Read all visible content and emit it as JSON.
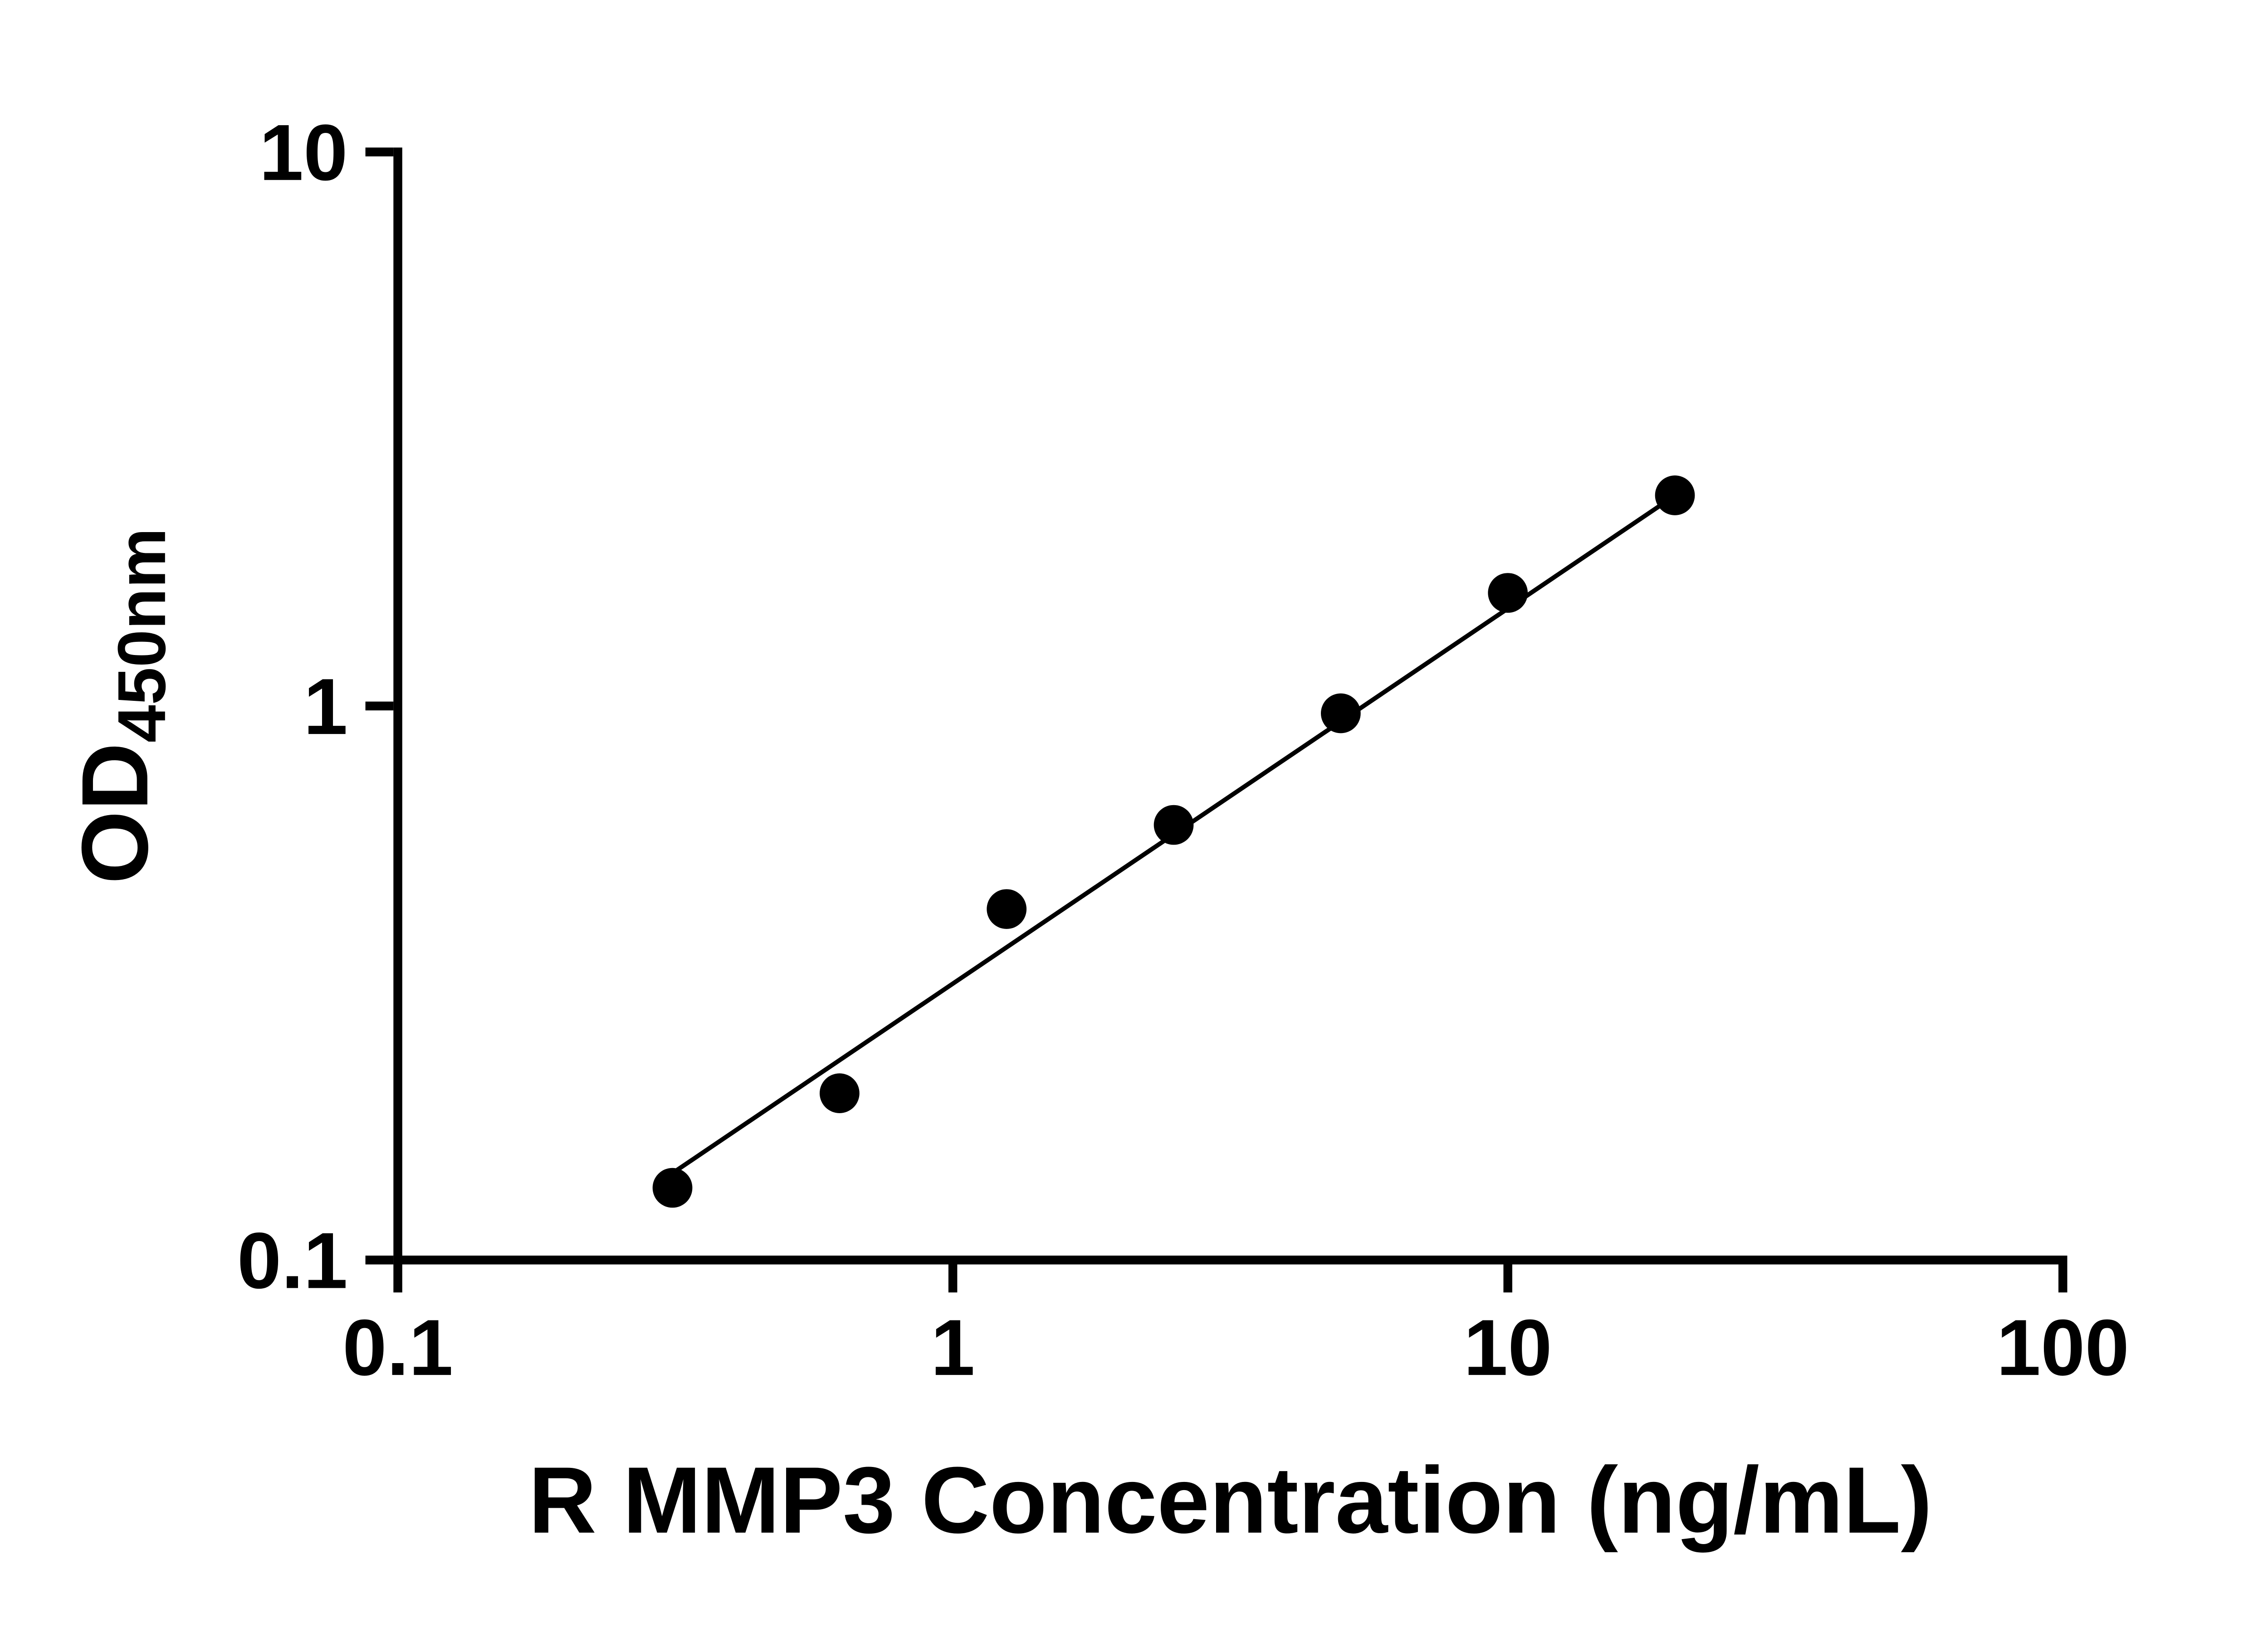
{
  "chart_data": {
    "type": "scatter",
    "title": "",
    "xlabel": "R MMP3 Concentration (ng/mL)",
    "ylabel_main": "OD",
    "ylabel_sub": "450nm",
    "xscale": "log",
    "yscale": "log",
    "xlim": [
      0.1,
      100
    ],
    "ylim": [
      0.1,
      10
    ],
    "xticks": [
      0.1,
      1,
      10,
      100
    ],
    "xtick_labels": [
      "0.1",
      "1",
      "10",
      "100"
    ],
    "yticks": [
      0.1,
      1,
      10
    ],
    "ytick_labels": [
      "0.1",
      "1",
      "10"
    ],
    "x": [
      0.3125,
      0.625,
      1.25,
      2.5,
      5,
      10,
      20
    ],
    "y": [
      0.135,
      0.2,
      0.43,
      0.61,
      0.97,
      1.6,
      2.4
    ],
    "trendline": {
      "x1": 0.295,
      "y1": 0.138,
      "x2": 20.4,
      "y2": 2.43
    },
    "grid": false,
    "legend": null,
    "marker_radius": 13.5,
    "marker_color": "#000000",
    "line_color": "#000000",
    "axis_color": "#000000",
    "background": "#ffffff"
  }
}
